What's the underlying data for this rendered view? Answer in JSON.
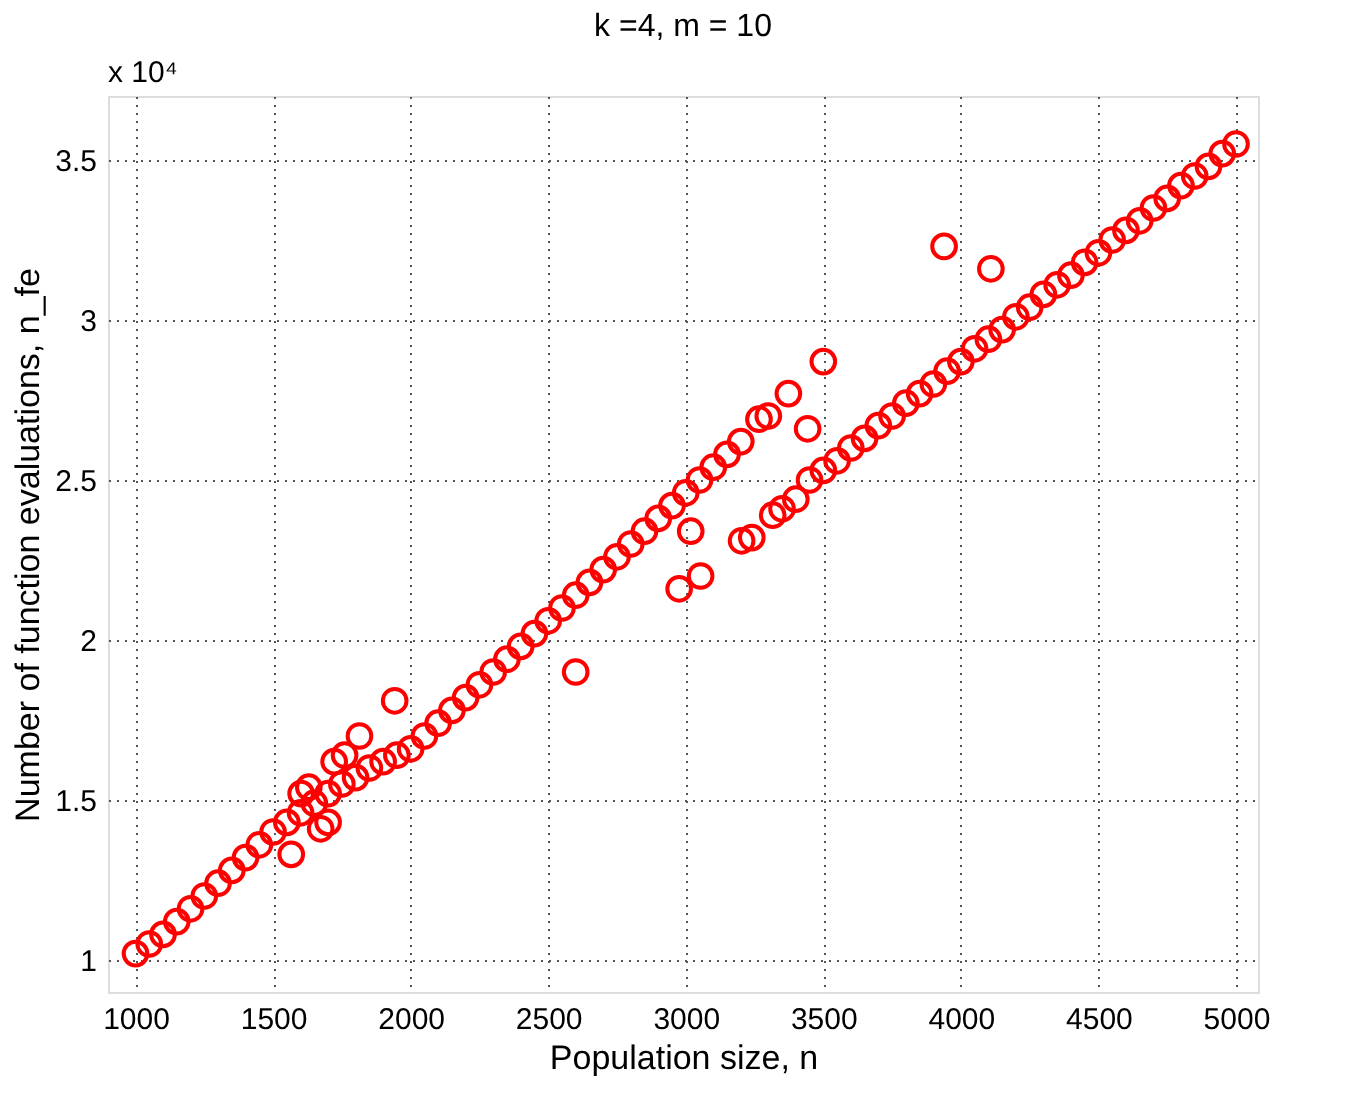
{
  "chart_data": {
    "type": "scatter",
    "title": "k =4, m = 10",
    "xlabel": "Population size, n",
    "ylabel": "Number of function evaluations, n_fe",
    "annotations": [
      "x 10⁴"
    ],
    "xlim": [
      900,
      5080
    ],
    "ylim": [
      0.9,
      3.7
    ],
    "xticks": [
      1000,
      1500,
      2000,
      2500,
      3000,
      3500,
      4000,
      4500,
      5000
    ],
    "yticks": [
      1,
      1.5,
      2,
      2.5,
      3,
      3.5
    ],
    "grid": true,
    "marker": "circle",
    "series": [
      {
        "color": "#ff0000",
        "x": [
          1000,
          1050,
          1100,
          1150,
          1200,
          1250,
          1300,
          1350,
          1400,
          1450,
          1500,
          1550,
          1600,
          1650,
          1700,
          1750,
          1800,
          1850,
          1900,
          1950,
          2000,
          2050,
          2100,
          2150,
          2200,
          2250,
          2300,
          2350,
          2400,
          2450,
          2500,
          2550,
          2600,
          2650,
          2700,
          2750,
          2800,
          2850,
          2900,
          2950,
          3000,
          3050,
          3100,
          3150,
          3200,
          3450,
          3500,
          3550,
          3600,
          3650,
          3700,
          3750,
          3800,
          3850,
          3900,
          3950,
          4000,
          4050,
          4100,
          4150,
          4200,
          4250,
          4300,
          4350,
          4400,
          4450,
          4500,
          4550,
          4600,
          4650,
          4700,
          4750,
          4800,
          4850,
          4900,
          4950,
          5000,
          1566,
          1602,
          1630,
          1673,
          1700,
          1722,
          1760,
          1814,
          1942,
          2600,
          2976,
          3018,
          3054,
          3203,
          3240,
          3316,
          3350,
          3400,
          3443,
          3266,
          3300,
          3373,
          3500,
          3939,
          4109
        ],
        "values": [
          1.02,
          1.05,
          1.08,
          1.12,
          1.16,
          1.2,
          1.24,
          1.28,
          1.32,
          1.36,
          1.4,
          1.43,
          1.46,
          1.49,
          1.52,
          1.55,
          1.57,
          1.6,
          1.62,
          1.64,
          1.66,
          1.7,
          1.74,
          1.78,
          1.82,
          1.86,
          1.9,
          1.94,
          1.98,
          2.02,
          2.06,
          2.1,
          2.14,
          2.18,
          2.22,
          2.26,
          2.3,
          2.34,
          2.38,
          2.42,
          2.46,
          2.5,
          2.54,
          2.58,
          2.62,
          2.5,
          2.53,
          2.56,
          2.6,
          2.63,
          2.67,
          2.7,
          2.74,
          2.77,
          2.8,
          2.84,
          2.87,
          2.91,
          2.94,
          2.97,
          3.01,
          3.04,
          3.08,
          3.11,
          3.14,
          3.18,
          3.21,
          3.25,
          3.28,
          3.31,
          3.35,
          3.38,
          3.42,
          3.45,
          3.48,
          3.52,
          3.55,
          1.33,
          1.52,
          1.54,
          1.41,
          1.43,
          1.62,
          1.64,
          1.7,
          1.81,
          1.9,
          2.16,
          2.34,
          2.2,
          2.31,
          2.32,
          2.39,
          2.41,
          2.44,
          2.66,
          2.69,
          2.7,
          2.77,
          2.87,
          3.23,
          3.16
        ]
      }
    ]
  }
}
